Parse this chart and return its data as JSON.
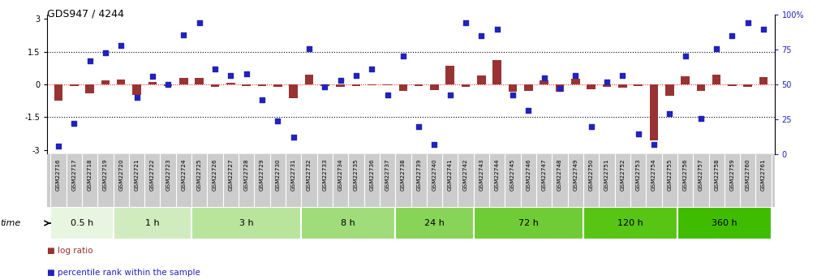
{
  "title": "GDS947 / 4244",
  "samples": [
    "GSM22716",
    "GSM22717",
    "GSM22718",
    "GSM22719",
    "GSM22720",
    "GSM22721",
    "GSM22722",
    "GSM22723",
    "GSM22724",
    "GSM22725",
    "GSM22726",
    "GSM22727",
    "GSM22728",
    "GSM22729",
    "GSM22730",
    "GSM22731",
    "GSM22732",
    "GSM22733",
    "GSM22734",
    "GSM22735",
    "GSM22736",
    "GSM22737",
    "GSM22738",
    "GSM22739",
    "GSM22740",
    "GSM22741",
    "GSM22742",
    "GSM22743",
    "GSM22744",
    "GSM22745",
    "GSM22746",
    "GSM22747",
    "GSM22748",
    "GSM22749",
    "GSM22750",
    "GSM22751",
    "GSM22752",
    "GSM22753",
    "GSM22754",
    "GSM22755",
    "GSM22756",
    "GSM22757",
    "GSM22758",
    "GSM22759",
    "GSM22760",
    "GSM22761"
  ],
  "log_ratio": [
    -0.75,
    -0.08,
    -0.42,
    0.18,
    0.22,
    -0.5,
    0.12,
    -0.08,
    0.3,
    0.28,
    -0.12,
    0.08,
    -0.08,
    -0.06,
    -0.1,
    -0.62,
    0.45,
    -0.07,
    -0.1,
    -0.08,
    -0.05,
    -0.05,
    -0.3,
    -0.08,
    -0.25,
    0.85,
    -0.12,
    0.42,
    1.1,
    -0.35,
    -0.28,
    0.18,
    -0.32,
    0.25,
    -0.22,
    -0.1,
    -0.14,
    -0.08,
    -2.55,
    -0.52,
    0.38,
    -0.28,
    0.45,
    -0.08,
    -0.12,
    0.32
  ],
  "percentile": [
    3,
    20,
    68,
    74,
    80,
    40,
    56,
    50,
    88,
    97,
    62,
    57,
    58,
    38,
    22,
    10,
    77,
    48,
    53,
    57,
    62,
    42,
    72,
    18,
    4,
    42,
    97,
    87,
    92,
    42,
    30,
    55,
    47,
    57,
    18,
    52,
    57,
    12,
    4,
    28,
    72,
    24,
    77,
    87,
    97,
    92
  ],
  "time_groups": [
    {
      "label": "0.5 h",
      "start": 0,
      "end": 4
    },
    {
      "label": "1 h",
      "start": 4,
      "end": 9
    },
    {
      "label": "3 h",
      "start": 9,
      "end": 16
    },
    {
      "label": "8 h",
      "start": 16,
      "end": 22
    },
    {
      "label": "24 h",
      "start": 22,
      "end": 27
    },
    {
      "label": "72 h",
      "start": 27,
      "end": 34
    },
    {
      "label": "120 h",
      "start": 34,
      "end": 40
    },
    {
      "label": "360 h",
      "start": 40,
      "end": 46
    }
  ],
  "group_colors": [
    "#e8f5e0",
    "#d0ecbe",
    "#b8e49c",
    "#a0dc7a",
    "#88d458",
    "#70cc36",
    "#58c414",
    "#40bc00"
  ],
  "bar_color": "#993333",
  "dot_color": "#2222bb",
  "bg_color": "#ffffff",
  "xtick_bg": "#d8d8d8",
  "ylim_left": [
    -3.2,
    3.2
  ],
  "ylim_right": [
    0,
    100
  ],
  "left_ticks": [
    -3,
    -1.5,
    0,
    1.5,
    3
  ],
  "right_ticks": [
    0,
    25,
    50,
    75,
    100
  ],
  "right_tick_labels": [
    "0",
    "25",
    "50",
    "75",
    "100%"
  ]
}
